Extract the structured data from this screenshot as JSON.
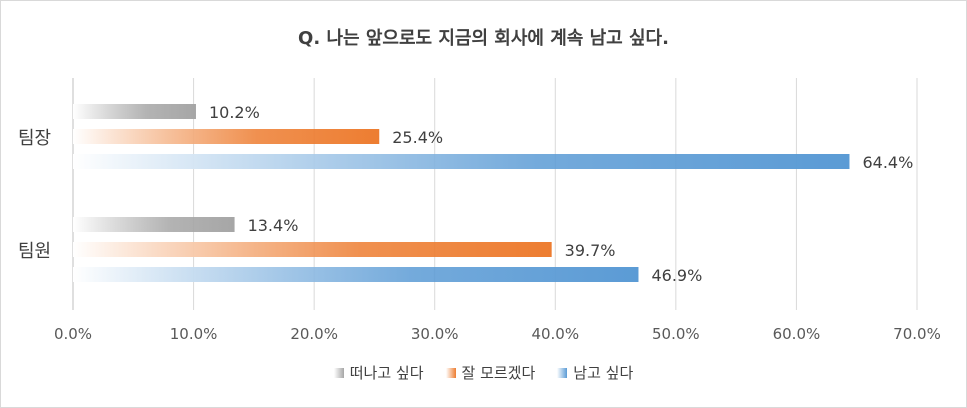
{
  "chart_data": {
    "type": "bar",
    "orientation": "horizontal",
    "title": "Q. 나는 앞으로도 지금의 회사에 계속 남고 싶다.",
    "categories": [
      "팀장",
      "팀원"
    ],
    "series": [
      {
        "name": "떠나고 싶다",
        "values": [
          10.2,
          13.4
        ],
        "color": "#a6a6a6",
        "labels": [
          "10.2%",
          "13.4%"
        ]
      },
      {
        "name": "잘 모르겠다",
        "values": [
          25.4,
          39.7
        ],
        "color": "#ed7d31",
        "labels": [
          "25.4%",
          "39.7%"
        ]
      },
      {
        "name": "남고 싶다",
        "values": [
          64.4,
          46.9
        ],
        "color": "#5b9bd5",
        "labels": [
          "64.4%",
          "46.9%"
        ]
      }
    ],
    "xlim": [
      0,
      70
    ],
    "x_ticks": [
      0,
      10,
      20,
      30,
      40,
      50,
      60,
      70
    ],
    "x_tick_labels": [
      "0.0%",
      "10.0%",
      "20.0%",
      "30.0%",
      "40.0%",
      "50.0%",
      "60.0%",
      "70.0%"
    ],
    "grid": true,
    "legend_position": "bottom"
  }
}
